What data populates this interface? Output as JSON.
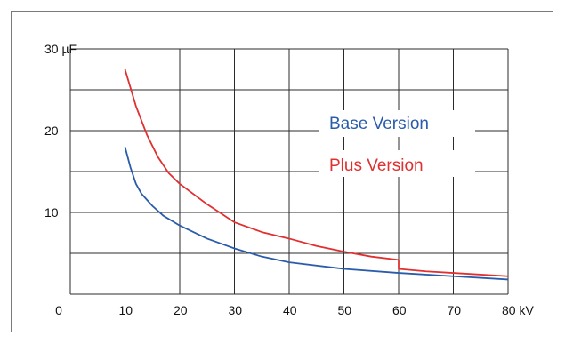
{
  "chart_data": {
    "type": "line",
    "title": "",
    "xlabel": "kV",
    "ylabel": "µF",
    "xlim": [
      0,
      80
    ],
    "ylim": [
      0,
      30
    ],
    "grid": true,
    "legend_position": "right, inside plot",
    "x_ticks": [
      {
        "value": 10,
        "label": "10"
      },
      {
        "value": 20,
        "label": "20"
      },
      {
        "value": 30,
        "label": "30"
      },
      {
        "value": 40,
        "label": "40"
      },
      {
        "value": 50,
        "label": "50"
      },
      {
        "value": 60,
        "label": "60"
      },
      {
        "value": 70,
        "label": "70"
      },
      {
        "value": 80,
        "label": "80 kV"
      }
    ],
    "origin_label": "0",
    "y_ticks": [
      {
        "value": 10,
        "label": "10"
      },
      {
        "value": 20,
        "label": "20"
      },
      {
        "value": 30,
        "label": "30 µF"
      }
    ],
    "series": [
      {
        "name": "Base Version",
        "color": "#2a5caa",
        "x": [
          10,
          11,
          12,
          13,
          15,
          17,
          20,
          25,
          30,
          35,
          40,
          50,
          60,
          70,
          80
        ],
        "y": [
          18,
          15.5,
          13.5,
          12.3,
          10.8,
          9.6,
          8.4,
          6.8,
          5.6,
          4.6,
          3.9,
          3.1,
          2.6,
          2.2,
          1.8
        ]
      },
      {
        "name": "Plus Version",
        "color": "#e03030",
        "x": [
          10,
          12,
          14,
          16,
          18,
          20,
          25,
          30,
          35,
          40,
          45,
          50,
          55,
          60,
          60,
          65,
          70,
          80
        ],
        "y": [
          27.5,
          23,
          19.5,
          16.8,
          14.8,
          13.5,
          11,
          8.8,
          7.6,
          6.8,
          5.9,
          5.2,
          4.6,
          4.2,
          3.1,
          2.8,
          2.6,
          2.2
        ]
      }
    ]
  }
}
